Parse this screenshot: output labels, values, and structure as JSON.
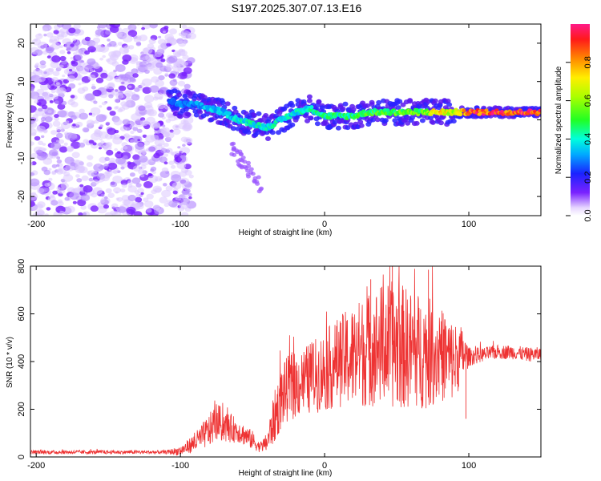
{
  "title": "S197.2025.307.07.13.E16",
  "chart_data": [
    {
      "type": "heatmap",
      "name": "spectrogram",
      "xlabel": "Height of straight line (km)",
      "ylabel": "Frequency (Hz)",
      "xlim": [
        -204,
        150
      ],
      "ylim": [
        -25,
        25
      ],
      "xticks": [
        -200,
        -100,
        0,
        100
      ],
      "yticks": [
        -20,
        -10,
        0,
        10,
        20
      ],
      "colorbar": {
        "label": "Normalized spectral amplitude",
        "range": [
          0,
          1
        ],
        "ticks": [
          "0.0",
          "0.2",
          "0.4",
          "0.6",
          "0.8"
        ],
        "tick_values": [
          0,
          0.2,
          0.4,
          0.6,
          0.8
        ]
      },
      "ridge": {
        "x": [
          -108,
          -100,
          -90,
          -80,
          -70,
          -60,
          -50,
          -40,
          -30,
          -20,
          -10,
          0,
          10,
          20,
          30,
          40,
          50,
          60,
          70,
          80,
          90,
          100,
          110,
          120,
          130,
          140,
          150
        ],
        "freq": [
          5,
          4,
          4,
          3,
          2,
          0,
          -1,
          -2,
          0,
          2,
          3,
          1,
          1,
          1,
          2,
          2,
          2,
          2,
          2,
          2,
          2,
          2,
          2,
          2,
          2,
          2,
          2
        ],
        "amplitude": [
          0.25,
          0.3,
          0.3,
          0.35,
          0.35,
          0.4,
          0.4,
          0.4,
          0.4,
          0.4,
          0.42,
          0.42,
          0.45,
          0.45,
          0.5,
          0.52,
          0.55,
          0.55,
          0.55,
          0.75,
          0.6,
          0.9,
          0.9,
          0.95,
          0.95,
          0.95,
          0.95
        ]
      },
      "noise_region": [
        -204,
        -92
      ]
    },
    {
      "type": "line",
      "name": "snr",
      "xlabel": "Height of straight line (km)",
      "ylabel": "SNR (10 * v/v)",
      "xlim": [
        -204,
        150
      ],
      "ylim": [
        0,
        800
      ],
      "xticks": [
        -200,
        -100,
        0,
        100
      ],
      "yticks": [
        0,
        200,
        400,
        600,
        800
      ],
      "color": "#ee3333",
      "envelope": {
        "x": [
          -204,
          -110,
          -100,
          -90,
          -80,
          -75,
          -70,
          -60,
          -50,
          -45,
          -40,
          -35,
          -30,
          -25,
          -20,
          -10,
          0,
          10,
          20,
          30,
          40,
          50,
          60,
          70,
          80,
          90,
          95,
          100,
          110,
          120,
          130,
          140,
          150
        ],
        "mean": [
          20,
          20,
          25,
          60,
          110,
          150,
          130,
          110,
          70,
          40,
          60,
          160,
          250,
          290,
          300,
          330,
          360,
          400,
          420,
          450,
          470,
          470,
          450,
          440,
          430,
          400,
          430,
          420,
          430,
          440,
          440,
          430,
          430
        ],
        "spread": [
          8,
          8,
          20,
          40,
          70,
          80,
          70,
          50,
          40,
          20,
          40,
          110,
          130,
          140,
          140,
          150,
          170,
          190,
          220,
          240,
          260,
          270,
          250,
          240,
          200,
          170,
          120,
          40,
          30,
          30,
          30,
          30,
          30
        ]
      },
      "notable_points": [
        {
          "x": 47,
          "y": 800
        },
        {
          "x": 32,
          "y": 745
        },
        {
          "x": 72,
          "y": 785
        },
        {
          "x": 98,
          "y": 160
        }
      ]
    }
  ]
}
